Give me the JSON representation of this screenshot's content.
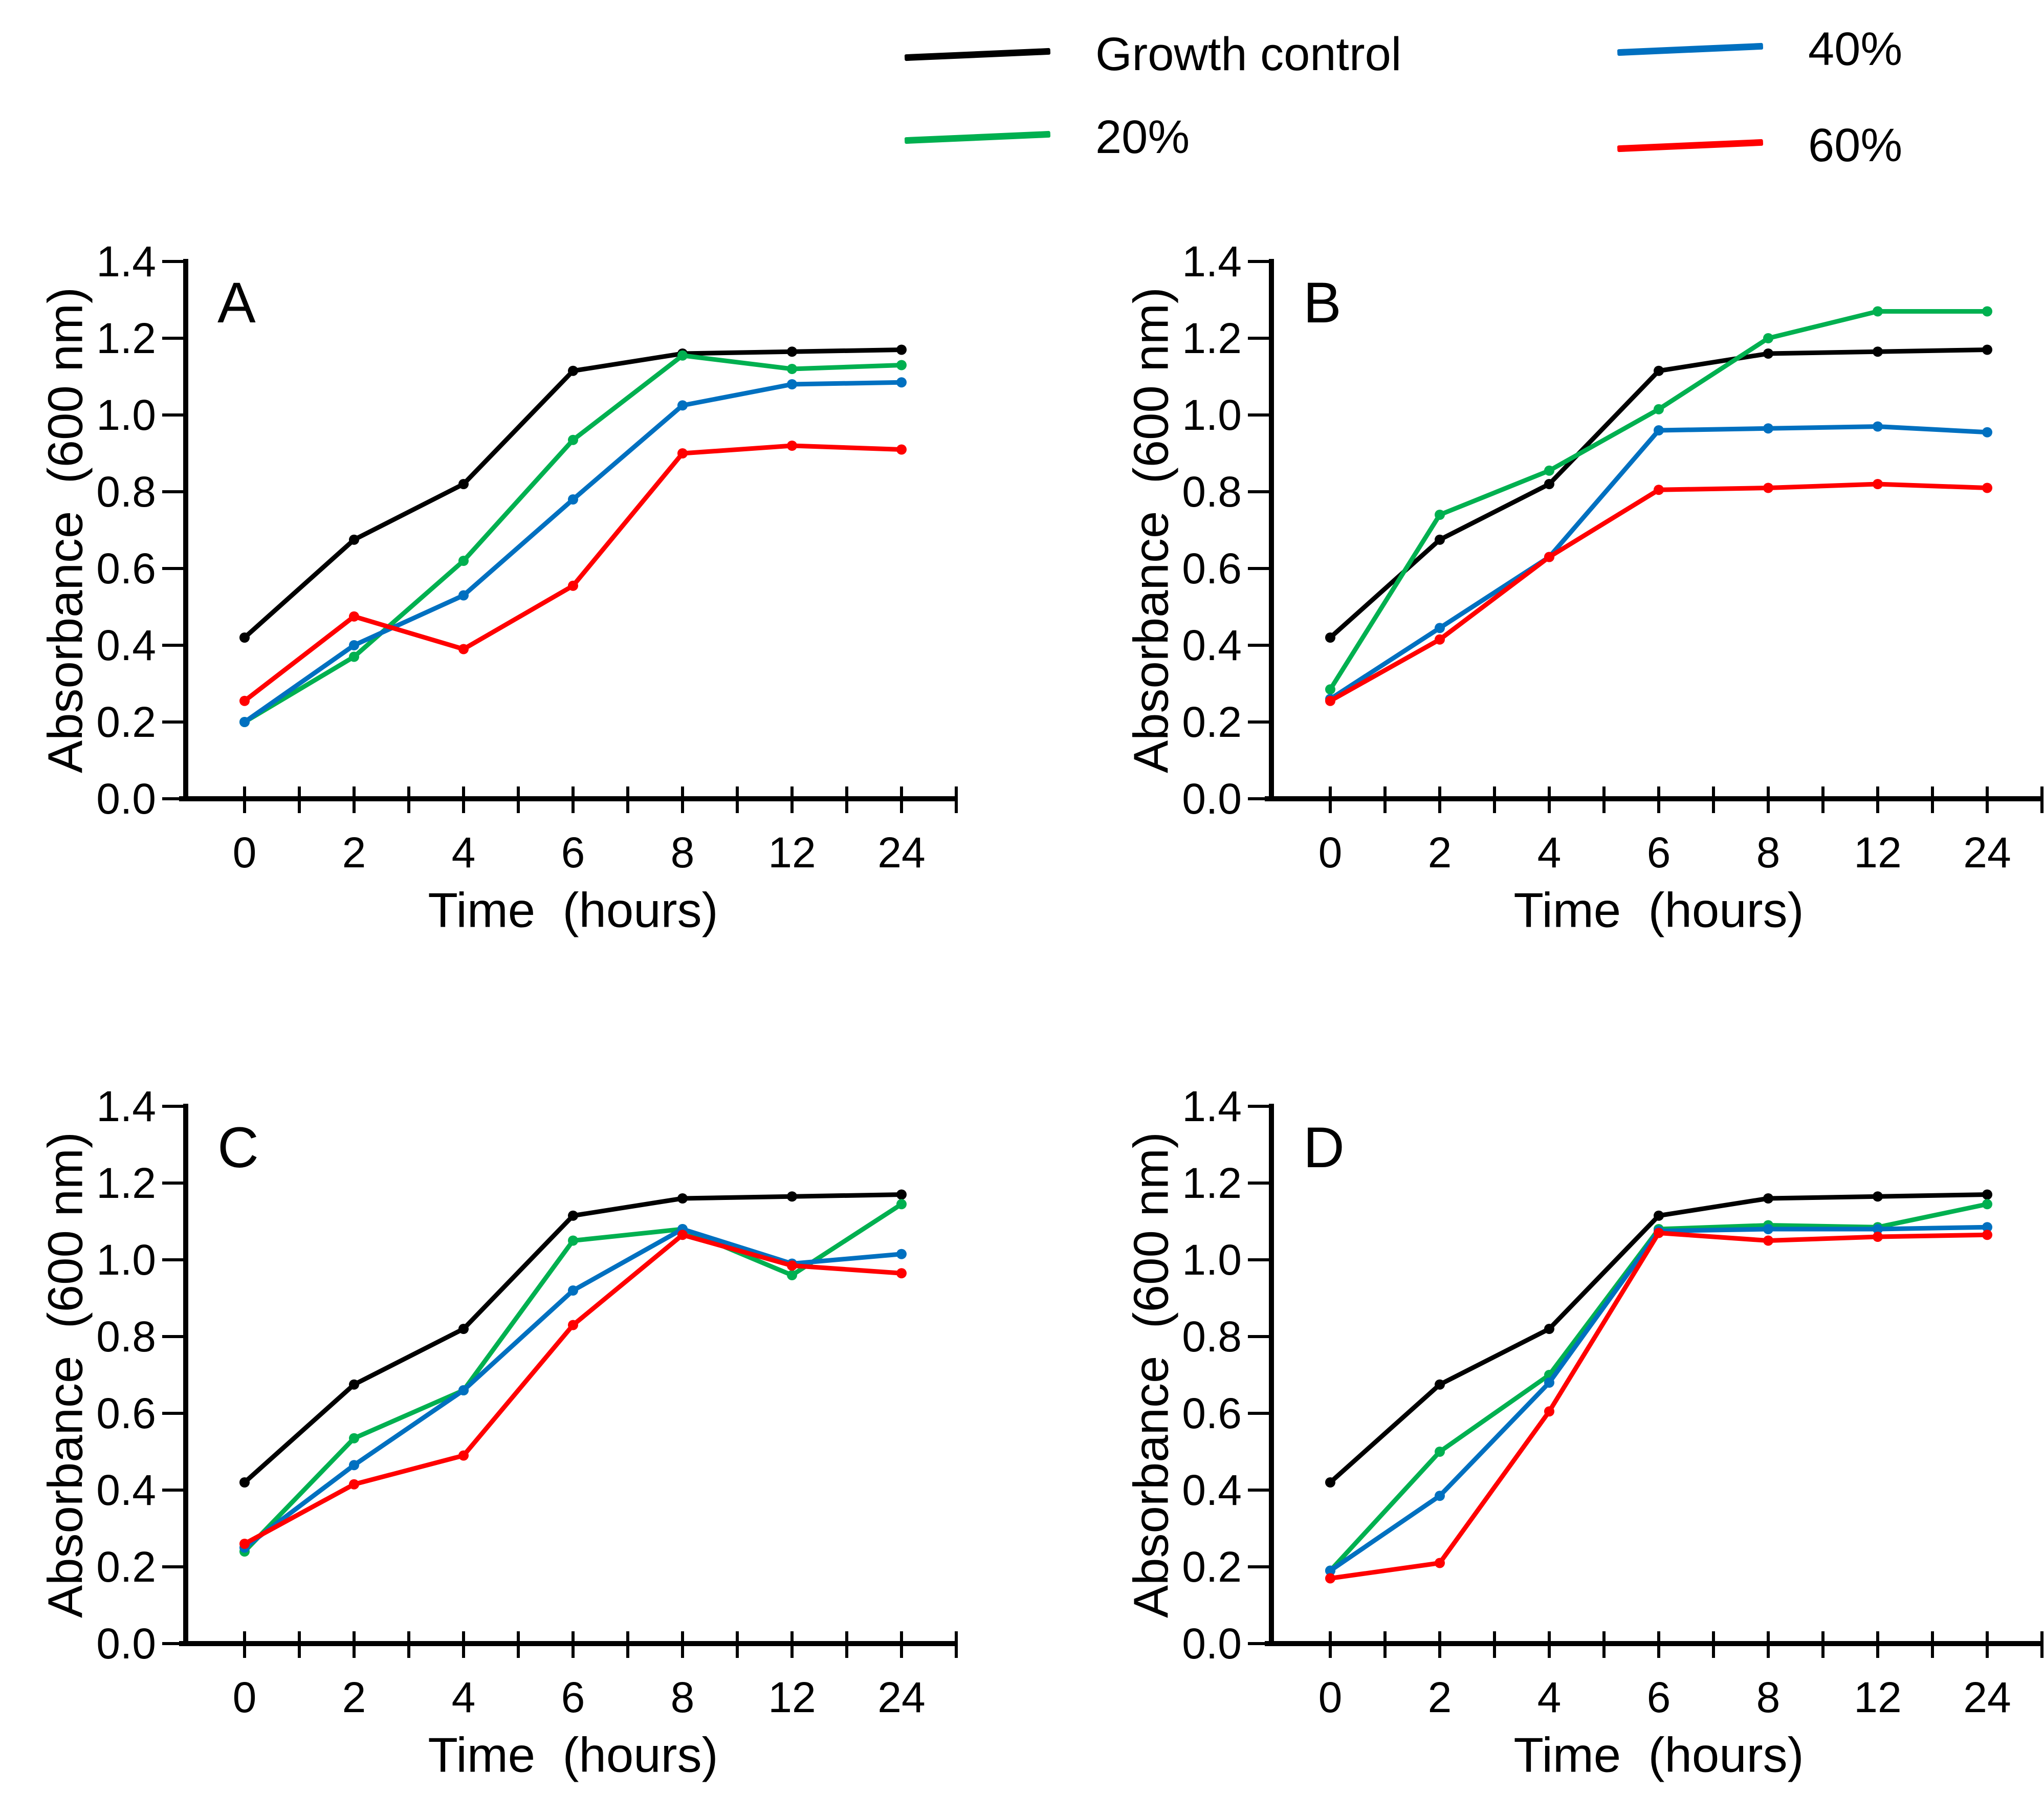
{
  "figure": {
    "background": "#ffffff",
    "axis_color": "#000000",
    "panels": [
      "A",
      "B",
      "C",
      "D"
    ],
    "xlabel": "Time  (hours)",
    "ylabel": "Absorbance  (600 nm)"
  },
  "legend": {
    "position": "top",
    "items": [
      {
        "label": "Growth control",
        "color": "#000000"
      },
      {
        "label": "20%",
        "color": "#00B050"
      },
      {
        "label": "40%",
        "color": "#0070C0"
      },
      {
        "label": "60%",
        "color": "#FF0000"
      }
    ]
  },
  "chart_data": [
    {
      "panel": "A",
      "type": "line",
      "x_categories": [
        "0",
        "2",
        "4",
        "6",
        "8",
        "12",
        "24"
      ],
      "xlabel": "Time  (hours)",
      "ylabel": "Absorbance  (600 nm)",
      "ylim": [
        0.0,
        1.4
      ],
      "yticks": [
        "0.0",
        "0.2",
        "0.4",
        "0.6",
        "0.8",
        "1.0",
        "1.2",
        "1.4"
      ],
      "grid": false,
      "legend_position": "shared-top",
      "series": [
        {
          "name": "Growth control",
          "color": "#000000",
          "values": [
            0.42,
            0.675,
            0.82,
            1.115,
            1.16,
            1.165,
            1.17
          ]
        },
        {
          "name": "20%",
          "color": "#00B050",
          "values": [
            0.2,
            0.37,
            0.62,
            0.935,
            1.155,
            1.12,
            1.13
          ]
        },
        {
          "name": "40%",
          "color": "#0070C0",
          "values": [
            0.2,
            0.4,
            0.53,
            0.78,
            1.025,
            1.08,
            1.085
          ]
        },
        {
          "name": "60%",
          "color": "#FF0000",
          "values": [
            0.255,
            0.475,
            0.39,
            0.555,
            0.9,
            0.92,
            0.91
          ]
        }
      ]
    },
    {
      "panel": "B",
      "type": "line",
      "x_categories": [
        "0",
        "2",
        "4",
        "6",
        "8",
        "12",
        "24"
      ],
      "xlabel": "Time  (hours)",
      "ylabel": "Absorbance  (600 nm)",
      "ylim": [
        0.0,
        1.4
      ],
      "yticks": [
        "0.0",
        "0.2",
        "0.4",
        "0.6",
        "0.8",
        "1.0",
        "1.2",
        "1.4"
      ],
      "grid": false,
      "legend_position": "shared-top",
      "series": [
        {
          "name": "Growth control",
          "color": "#000000",
          "values": [
            0.42,
            0.675,
            0.82,
            1.115,
            1.16,
            1.165,
            1.17
          ]
        },
        {
          "name": "20%",
          "color": "#00B050",
          "values": [
            0.285,
            0.74,
            0.855,
            1.015,
            1.2,
            1.27,
            1.27
          ]
        },
        {
          "name": "40%",
          "color": "#0070C0",
          "values": [
            0.26,
            0.445,
            0.63,
            0.96,
            0.965,
            0.97,
            0.955
          ]
        },
        {
          "name": "60%",
          "color": "#FF0000",
          "values": [
            0.255,
            0.415,
            0.63,
            0.805,
            0.81,
            0.82,
            0.81
          ]
        }
      ]
    },
    {
      "panel": "C",
      "type": "line",
      "x_categories": [
        "0",
        "2",
        "4",
        "6",
        "8",
        "12",
        "24"
      ],
      "xlabel": "Time  (hours)",
      "ylabel": "Absorbance  (600 nm)",
      "ylim": [
        0.0,
        1.4
      ],
      "yticks": [
        "0.0",
        "0.2",
        "0.4",
        "0.6",
        "0.8",
        "1.0",
        "1.2",
        "1.4"
      ],
      "grid": false,
      "legend_position": "shared-top",
      "series": [
        {
          "name": "Growth control",
          "color": "#000000",
          "values": [
            0.42,
            0.675,
            0.82,
            1.115,
            1.16,
            1.165,
            1.17
          ]
        },
        {
          "name": "20%",
          "color": "#00B050",
          "values": [
            0.24,
            0.535,
            0.66,
            1.05,
            1.08,
            0.96,
            1.145
          ]
        },
        {
          "name": "40%",
          "color": "#0070C0",
          "values": [
            0.25,
            0.465,
            0.66,
            0.92,
            1.08,
            0.99,
            1.015
          ]
        },
        {
          "name": "60%",
          "color": "#FF0000",
          "values": [
            0.26,
            0.415,
            0.49,
            0.83,
            1.065,
            0.985,
            0.965
          ]
        }
      ]
    },
    {
      "panel": "D",
      "type": "line",
      "x_categories": [
        "0",
        "2",
        "4",
        "6",
        "8",
        "12",
        "24"
      ],
      "xlabel": "Time  (hours)",
      "ylabel": "Absorbance  (600 nm)",
      "ylim": [
        0.0,
        1.4
      ],
      "yticks": [
        "0.0",
        "0.2",
        "0.4",
        "0.6",
        "0.8",
        "1.0",
        "1.2",
        "1.4"
      ],
      "grid": false,
      "legend_position": "shared-top",
      "series": [
        {
          "name": "Growth control",
          "color": "#000000",
          "values": [
            0.42,
            0.675,
            0.82,
            1.115,
            1.16,
            1.165,
            1.17
          ]
        },
        {
          "name": "20%",
          "color": "#00B050",
          "values": [
            0.19,
            0.5,
            0.7,
            1.08,
            1.09,
            1.085,
            1.145
          ]
        },
        {
          "name": "40%",
          "color": "#0070C0",
          "values": [
            0.19,
            0.385,
            0.68,
            1.075,
            1.08,
            1.08,
            1.085
          ]
        },
        {
          "name": "60%",
          "color": "#FF0000",
          "values": [
            0.17,
            0.21,
            0.605,
            1.07,
            1.05,
            1.06,
            1.065
          ]
        }
      ]
    }
  ]
}
